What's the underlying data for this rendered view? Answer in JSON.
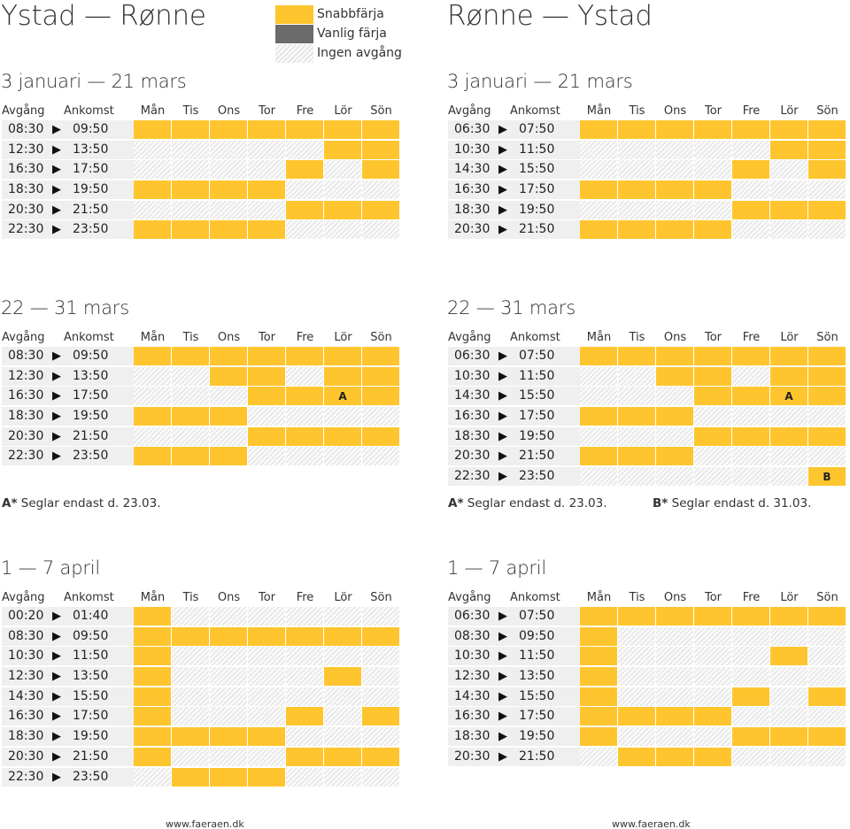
{
  "colors": {
    "snabb": "#fec52e",
    "vanlig": "#6b6b6b",
    "ingen": "hatched-grey"
  },
  "titles": {
    "left": "Ystad — Rønne",
    "right": "Rønne — Ystad"
  },
  "legend": {
    "snabb": "Snabbfärja",
    "vanlig": "Vanlig färja",
    "ingen": "Ingen avgång"
  },
  "header": {
    "avgang": "Avgång",
    "ankomst": "Ankomst",
    "days": [
      "Mån",
      "Tis",
      "Ons",
      "Tor",
      "Fre",
      "Lör",
      "Sön"
    ]
  },
  "arrow_glyph": "▶",
  "periods": {
    "p1": "3 januari — 21 mars",
    "p2": "22 — 31 mars",
    "p3": "1 — 7 april"
  },
  "notes": {
    "a_key": "A*",
    "a_text": " Seglar endast d. 23.03.",
    "b_key": "B*",
    "b_text": " Seglar endast d. 31.03."
  },
  "footer": "www.faeraen.dk",
  "schedules": {
    "s1l": {
      "rows": [
        {
          "dep": "08:30",
          "arr": "09:50",
          "days": [
            "F",
            "F",
            "F",
            "F",
            "F",
            "F",
            "F"
          ]
        },
        {
          "dep": "12:30",
          "arr": "13:50",
          "days": [
            "N",
            "N",
            "N",
            "N",
            "N",
            "F",
            "F"
          ]
        },
        {
          "dep": "16:30",
          "arr": "17:50",
          "days": [
            "N",
            "N",
            "N",
            "N",
            "F",
            "N",
            "F"
          ]
        },
        {
          "dep": "18:30",
          "arr": "19:50",
          "days": [
            "F",
            "F",
            "F",
            "F",
            "N",
            "N",
            "N"
          ]
        },
        {
          "dep": "20:30",
          "arr": "21:50",
          "days": [
            "N",
            "N",
            "N",
            "N",
            "F",
            "F",
            "F"
          ]
        },
        {
          "dep": "22:30",
          "arr": "23:50",
          "days": [
            "F",
            "F",
            "F",
            "F",
            "N",
            "N",
            "N"
          ]
        }
      ],
      "labels": [
        [
          "",
          "",
          "",
          "",
          "",
          "",
          ""
        ],
        [
          "",
          "",
          "",
          "",
          "",
          "",
          ""
        ],
        [
          "",
          "",
          "",
          "",
          "",
          "",
          ""
        ],
        [
          "",
          "",
          "",
          "",
          "",
          "",
          ""
        ],
        [
          "",
          "",
          "",
          "",
          "",
          "",
          ""
        ],
        [
          "",
          "",
          "",
          "",
          "",
          "",
          ""
        ]
      ]
    },
    "s1r": {
      "rows": [
        {
          "dep": "06:30",
          "arr": "07:50",
          "days": [
            "F",
            "F",
            "F",
            "F",
            "F",
            "F",
            "F"
          ]
        },
        {
          "dep": "10:30",
          "arr": "11:50",
          "days": [
            "N",
            "N",
            "N",
            "N",
            "N",
            "F",
            "F"
          ]
        },
        {
          "dep": "14:30",
          "arr": "15:50",
          "days": [
            "N",
            "N",
            "N",
            "N",
            "F",
            "N",
            "F"
          ]
        },
        {
          "dep": "16:30",
          "arr": "17:50",
          "days": [
            "F",
            "F",
            "F",
            "F",
            "N",
            "N",
            "N"
          ]
        },
        {
          "dep": "18:30",
          "arr": "19:50",
          "days": [
            "N",
            "N",
            "N",
            "N",
            "F",
            "F",
            "F"
          ]
        },
        {
          "dep": "20:30",
          "arr": "21:50",
          "days": [
            "F",
            "F",
            "F",
            "F",
            "N",
            "N",
            "N"
          ]
        }
      ]
    },
    "s2l": {
      "rows": [
        {
          "dep": "08:30",
          "arr": "09:50",
          "days": [
            "F",
            "F",
            "F",
            "F",
            "F",
            "F",
            "F"
          ]
        },
        {
          "dep": "12:30",
          "arr": "13:50",
          "days": [
            "N",
            "N",
            "F",
            "F",
            "N",
            "F",
            "F"
          ]
        },
        {
          "dep": "16:30",
          "arr": "17:50",
          "days": [
            "N",
            "N",
            "N",
            "F",
            "F",
            "F",
            "F"
          ]
        },
        {
          "dep": "18:30",
          "arr": "19:50",
          "days": [
            "F",
            "F",
            "F",
            "N",
            "N",
            "N",
            "N"
          ]
        },
        {
          "dep": "20:30",
          "arr": "21:50",
          "days": [
            "N",
            "N",
            "N",
            "F",
            "F",
            "F",
            "F"
          ]
        },
        {
          "dep": "22:30",
          "arr": "23:50",
          "days": [
            "F",
            "F",
            "F",
            "N",
            "N",
            "N",
            "N"
          ]
        }
      ],
      "marks": {
        "2-5": "A"
      }
    },
    "s2r": {
      "rows": [
        {
          "dep": "06:30",
          "arr": "07:50",
          "days": [
            "F",
            "F",
            "F",
            "F",
            "F",
            "F",
            "F"
          ]
        },
        {
          "dep": "10:30",
          "arr": "11:50",
          "days": [
            "N",
            "N",
            "F",
            "F",
            "N",
            "F",
            "F"
          ]
        },
        {
          "dep": "14:30",
          "arr": "15:50",
          "days": [
            "N",
            "N",
            "N",
            "F",
            "F",
            "F",
            "F"
          ]
        },
        {
          "dep": "16:30",
          "arr": "17:50",
          "days": [
            "F",
            "F",
            "F",
            "N",
            "N",
            "N",
            "N"
          ]
        },
        {
          "dep": "18:30",
          "arr": "19:50",
          "days": [
            "N",
            "N",
            "N",
            "F",
            "F",
            "F",
            "F"
          ]
        },
        {
          "dep": "20:30",
          "arr": "21:50",
          "days": [
            "F",
            "F",
            "F",
            "N",
            "N",
            "N",
            "N"
          ]
        },
        {
          "dep": "22:30",
          "arr": "23:50",
          "days": [
            "N",
            "N",
            "N",
            "N",
            "N",
            "N",
            "F"
          ]
        }
      ],
      "marks": {
        "2-5": "A",
        "6-6": "B"
      }
    },
    "s3l": {
      "rows": [
        {
          "dep": "00:20",
          "arr": "01:40",
          "days": [
            "F",
            "N",
            "N",
            "N",
            "N",
            "N",
            "N"
          ]
        },
        {
          "dep": "08:30",
          "arr": "09:50",
          "days": [
            "F",
            "F",
            "F",
            "F",
            "F",
            "F",
            "F"
          ]
        },
        {
          "dep": "10:30",
          "arr": "11:50",
          "days": [
            "F",
            "N",
            "N",
            "N",
            "N",
            "N",
            "N"
          ]
        },
        {
          "dep": "12:30",
          "arr": "13:50",
          "days": [
            "F",
            "N",
            "N",
            "N",
            "N",
            "F",
            "N"
          ]
        },
        {
          "dep": "14:30",
          "arr": "15:50",
          "days": [
            "F",
            "N",
            "N",
            "N",
            "N",
            "N",
            "N"
          ]
        },
        {
          "dep": "16:30",
          "arr": "17:50",
          "days": [
            "F",
            "N",
            "N",
            "N",
            "F",
            "N",
            "F"
          ]
        },
        {
          "dep": "18:30",
          "arr": "19:50",
          "days": [
            "F",
            "F",
            "F",
            "F",
            "N",
            "N",
            "N"
          ]
        },
        {
          "dep": "20:30",
          "arr": "21:50",
          "days": [
            "F",
            "N",
            "N",
            "N",
            "F",
            "F",
            "F"
          ]
        },
        {
          "dep": "22:30",
          "arr": "23:50",
          "days": [
            "N",
            "F",
            "F",
            "F",
            "N",
            "N",
            "N"
          ]
        }
      ]
    },
    "s3r": {
      "rows": [
        {
          "dep": "06:30",
          "arr": "07:50",
          "days": [
            "F",
            "F",
            "F",
            "F",
            "F",
            "F",
            "F"
          ]
        },
        {
          "dep": "08:30",
          "arr": "09:50",
          "days": [
            "F",
            "N",
            "N",
            "N",
            "N",
            "N",
            "N"
          ]
        },
        {
          "dep": "10:30",
          "arr": "11:50",
          "days": [
            "F",
            "N",
            "N",
            "N",
            "N",
            "F",
            "N"
          ]
        },
        {
          "dep": "12:30",
          "arr": "13:50",
          "days": [
            "F",
            "N",
            "N",
            "N",
            "N",
            "N",
            "N"
          ]
        },
        {
          "dep": "14:30",
          "arr": "15:50",
          "days": [
            "F",
            "N",
            "N",
            "N",
            "F",
            "N",
            "F"
          ]
        },
        {
          "dep": "16:30",
          "arr": "17:50",
          "days": [
            "F",
            "F",
            "F",
            "F",
            "N",
            "N",
            "N"
          ]
        },
        {
          "dep": "18:30",
          "arr": "19:50",
          "days": [
            "F",
            "N",
            "N",
            "N",
            "F",
            "F",
            "F"
          ]
        },
        {
          "dep": "20:30",
          "arr": "21:50",
          "days": [
            "N",
            "F",
            "F",
            "F",
            "N",
            "N",
            "N"
          ]
        }
      ]
    }
  }
}
